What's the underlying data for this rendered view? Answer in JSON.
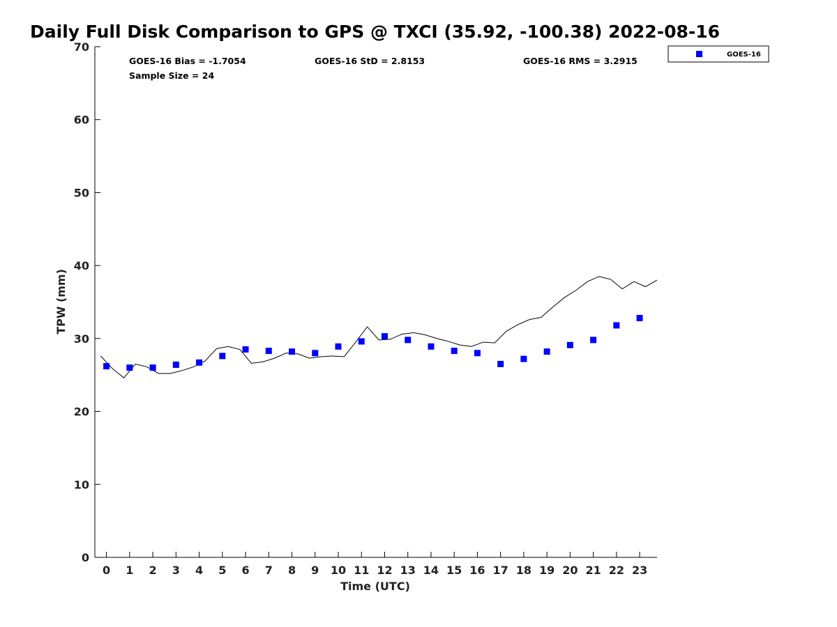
{
  "chart_data": {
    "type": "scatter",
    "title": "Daily Full Disk Comparison to GPS @ TXCI (35.92, -100.38) 2022-08-16",
    "xlabel": "Time (UTC)",
    "ylabel": "TPW (mm)",
    "xlim": [
      -0.5,
      23.75
    ],
    "ylim": [
      0,
      70
    ],
    "x_ticks": [
      0,
      1,
      2,
      3,
      4,
      5,
      6,
      7,
      8,
      9,
      10,
      11,
      12,
      13,
      14,
      15,
      16,
      17,
      18,
      19,
      20,
      21,
      22,
      23
    ],
    "y_ticks": [
      0,
      10,
      20,
      30,
      40,
      50,
      60,
      70
    ],
    "grid": false,
    "legend_position": "outside top-right",
    "series": [
      {
        "name": "GOES-16",
        "kind": "scatter",
        "marker": "square",
        "color": "#0000ff",
        "points": [
          [
            0,
            26.2
          ],
          [
            1,
            26.0
          ],
          [
            2,
            26.0
          ],
          [
            3,
            26.4
          ],
          [
            4,
            26.7
          ],
          [
            5,
            27.6
          ],
          [
            6,
            28.5
          ],
          [
            7,
            28.3
          ],
          [
            8,
            28.2
          ],
          [
            9,
            28.0
          ],
          [
            10,
            28.9
          ],
          [
            11,
            29.6
          ],
          [
            12,
            30.3
          ],
          [
            13,
            29.8
          ],
          [
            14,
            28.9
          ],
          [
            15,
            28.3
          ],
          [
            16,
            28.0
          ],
          [
            17,
            26.5
          ],
          [
            18,
            27.2
          ],
          [
            19,
            28.2
          ],
          [
            20,
            29.1
          ],
          [
            21,
            29.8
          ],
          [
            22,
            31.8
          ],
          [
            23,
            32.8
          ]
        ]
      },
      {
        "kind": "line",
        "color": "#000000",
        "points": [
          [
            -0.25,
            27.6
          ],
          [
            0.25,
            25.9
          ],
          [
            0.75,
            24.6
          ],
          [
            1.25,
            26.5
          ],
          [
            1.75,
            26.1
          ],
          [
            2.25,
            25.2
          ],
          [
            2.75,
            25.2
          ],
          [
            3.25,
            25.6
          ],
          [
            3.75,
            26.1
          ],
          [
            4.25,
            26.9
          ],
          [
            4.75,
            28.6
          ],
          [
            5.25,
            28.9
          ],
          [
            5.75,
            28.5
          ],
          [
            6.25,
            26.6
          ],
          [
            6.75,
            26.8
          ],
          [
            7.25,
            27.3
          ],
          [
            7.75,
            28.0
          ],
          [
            8.25,
            27.9
          ],
          [
            8.75,
            27.3
          ],
          [
            9.25,
            27.5
          ],
          [
            9.75,
            27.6
          ],
          [
            10.25,
            27.5
          ],
          [
            10.75,
            29.5
          ],
          [
            11.25,
            31.6
          ],
          [
            11.75,
            29.8
          ],
          [
            12.25,
            29.9
          ],
          [
            12.75,
            30.6
          ],
          [
            13.25,
            30.8
          ],
          [
            13.75,
            30.5
          ],
          [
            14.25,
            30.0
          ],
          [
            14.75,
            29.6
          ],
          [
            15.25,
            29.1
          ],
          [
            15.75,
            28.9
          ],
          [
            16.25,
            29.5
          ],
          [
            16.75,
            29.4
          ],
          [
            17.25,
            31.0
          ],
          [
            17.75,
            31.9
          ],
          [
            18.25,
            32.6
          ],
          [
            18.75,
            32.9
          ],
          [
            19.25,
            34.3
          ],
          [
            19.75,
            35.6
          ],
          [
            20.25,
            36.6
          ],
          [
            20.75,
            37.8
          ],
          [
            21.25,
            38.5
          ],
          [
            21.75,
            38.1
          ],
          [
            22.25,
            36.8
          ],
          [
            22.75,
            37.8
          ],
          [
            23.25,
            37.1
          ],
          [
            23.75,
            38.0
          ]
        ]
      }
    ],
    "annotations": {
      "bias": "GOES-16 Bias = -1.7054",
      "std": "GOES-16 StD = 2.8153",
      "rms": "GOES-16 RMS = 3.2915",
      "sample_size": "Sample Size = 24"
    }
  }
}
